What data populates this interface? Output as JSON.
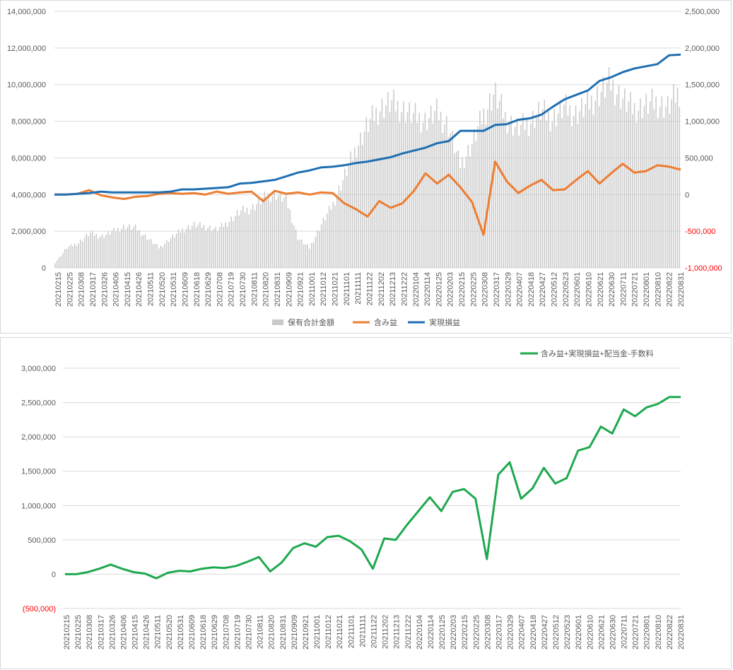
{
  "colors": {
    "holdings": "#c9c9c9",
    "unrealized": "#ed7d31",
    "realized": "#1f6fb2",
    "total": "#1fa84f",
    "grid": "#d9d9d9",
    "negative": "#ff0000",
    "tick": "#595959"
  },
  "date_ticks": [
    "20210215",
    "20210225",
    "20210308",
    "20210317",
    "20210326",
    "20210406",
    "20210415",
    "20210426",
    "20210511",
    "20210520",
    "20210531",
    "20210609",
    "20210618",
    "20210629",
    "20210708",
    "20210719",
    "20210730",
    "20210811",
    "20210820",
    "20210831",
    "20210909",
    "20210921",
    "20211001",
    "20211012",
    "20211021",
    "20211101",
    "20211111",
    "20211122",
    "20211202",
    "20211213",
    "20211222",
    "20220104",
    "20220114",
    "20220125",
    "20220203",
    "20220215",
    "20220225",
    "20220308",
    "20220317",
    "20220329",
    "20220407",
    "20220418",
    "20220427",
    "20220512",
    "20220523",
    "20220601",
    "20220610",
    "20220621",
    "20220630",
    "20220711",
    "20220721",
    "20220801",
    "20220810",
    "20220822",
    "20220831"
  ],
  "chart_data": [
    {
      "type": "bar",
      "legend_position": "bottom",
      "grid": true,
      "left_axis": {
        "range": [
          0,
          14000000
        ],
        "tick_labels": [
          "0",
          "2,000,000",
          "4,000,000",
          "6,000,000",
          "8,000,000",
          "10,000,000",
          "12,000,000",
          "14,000,000"
        ]
      },
      "right_axis": {
        "range": [
          -1000000,
          2500000
        ],
        "tick_labels": [
          "-1,000,000",
          "-500,000",
          "0",
          "500,000",
          "1,000,000",
          "1,500,000",
          "2,000,000",
          "2,500,000"
        ]
      },
      "x": "date_ticks",
      "series": [
        {
          "name": "保有合計金額",
          "type": "bar",
          "axis": "left",
          "color": "#c9c9c9",
          "values": [
            300000,
            1200000,
            1500000,
            2100000,
            1900000,
            2200000,
            2500000,
            2400000,
            1800000,
            1200000,
            1800000,
            2300000,
            2600000,
            2500000,
            2300000,
            2800000,
            3400000,
            3600000,
            4200000,
            4500000,
            4100000,
            1800000,
            1200000,
            2600000,
            3800000,
            5500000,
            7200000,
            8600000,
            9600000,
            10000000,
            9600000,
            9200000,
            8900000,
            9400000,
            8600000,
            6200000,
            7400000,
            9200000,
            10600000,
            9000000,
            8400000,
            8800000,
            9500000,
            9000000,
            9700000,
            9300000,
            9800000,
            10500000,
            11200000,
            10300000,
            9600000,
            9800000,
            10000000,
            9700000,
            10700000
          ]
        },
        {
          "name": "含み益",
          "type": "line",
          "axis": "right",
          "color": "#ed7d31",
          "values": [
            0,
            0,
            10,
            60,
            -10,
            -40,
            -60,
            -30,
            -20,
            10,
            20,
            10,
            20,
            0,
            40,
            10,
            30,
            40,
            -90,
            50,
            10,
            30,
            0,
            30,
            20,
            -120,
            -200,
            -300,
            -90,
            -180,
            -120,
            50,
            290,
            150,
            270,
            100,
            -100,
            -550,
            450,
            180,
            20,
            120,
            200,
            60,
            70,
            200,
            320,
            150,
            290,
            420,
            300,
            320,
            400,
            380,
            340
          ]
        },
        {
          "name": "実現損益",
          "type": "line",
          "axis": "right",
          "color": "#1f6fb2",
          "values": [
            0,
            0,
            10,
            20,
            40,
            30,
            30,
            30,
            30,
            30,
            40,
            70,
            70,
            80,
            90,
            100,
            150,
            160,
            180,
            200,
            250,
            300,
            330,
            370,
            380,
            400,
            430,
            450,
            480,
            510,
            560,
            600,
            640,
            700,
            730,
            870,
            870,
            870,
            950,
            960,
            1020,
            1040,
            1090,
            1200,
            1300,
            1360,
            1420,
            1550,
            1600,
            1670,
            1720,
            1750,
            1780,
            1900,
            1910
          ]
        }
      ]
    },
    {
      "type": "line",
      "legend_position": "top-right",
      "grid": true,
      "axis": {
        "range": [
          -500000,
          3000000
        ],
        "tick_labels": [
          "(500,000)",
          "0",
          "500,000",
          "1,000,000",
          "1,500,000",
          "2,000,000",
          "2,500,000",
          "3,000,000"
        ]
      },
      "x": "date_ticks",
      "series": [
        {
          "name": "含み益+実現損益+配当金-手数料",
          "color": "#1fa84f",
          "values": [
            0,
            0,
            30,
            80,
            140,
            80,
            30,
            10,
            -60,
            20,
            50,
            40,
            80,
            100,
            90,
            120,
            180,
            250,
            40,
            170,
            380,
            450,
            400,
            540,
            560,
            480,
            360,
            80,
            520,
            500,
            720,
            920,
            1120,
            920,
            1200,
            1240,
            1100,
            220,
            1450,
            1630,
            1100,
            1250,
            1550,
            1320,
            1400,
            1800,
            1850,
            2150,
            2050,
            2400,
            2300,
            2430,
            2480,
            2580,
            2580
          ]
        }
      ]
    }
  ]
}
